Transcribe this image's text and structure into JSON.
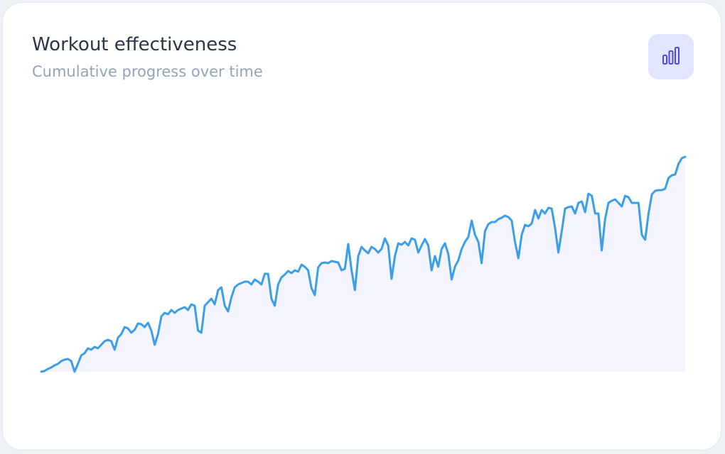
{
  "chart_data": {
    "type": "line",
    "title": "Workout effectiveness",
    "subtitle": "Cumulative progress over time",
    "color": "#3a9fe8",
    "area_color": "#f4f4fe",
    "values": [
      0,
      1,
      4,
      6,
      9,
      11,
      15,
      17,
      18,
      15,
      0,
      11,
      23,
      26,
      33,
      31,
      35,
      33,
      38,
      43,
      45,
      43,
      31,
      48,
      53,
      63,
      61,
      55,
      59,
      68,
      67,
      63,
      69,
      58,
      38,
      53,
      78,
      83,
      81,
      87,
      83,
      87,
      89,
      91,
      87,
      95,
      93,
      58,
      55,
      93,
      98,
      103,
      95,
      115,
      119,
      93,
      85,
      105,
      119,
      123,
      125,
      127,
      127,
      123,
      130,
      127,
      123,
      138,
      138,
      103,
      93,
      123,
      133,
      137,
      142,
      139,
      143,
      141,
      151,
      148,
      143,
      118,
      108,
      147,
      153,
      154,
      153,
      156,
      155,
      154,
      143,
      145,
      180,
      143,
      115,
      163,
      176,
      171,
      167,
      176,
      173,
      168,
      173,
      188,
      178,
      131,
      163,
      181,
      179,
      183,
      178,
      188,
      186,
      168,
      178,
      187,
      178,
      143,
      163,
      148,
      173,
      181,
      166,
      130,
      148,
      157,
      173,
      183,
      190,
      213,
      193,
      183,
      153,
      198,
      208,
      211,
      211,
      215,
      217,
      220,
      218,
      213,
      183,
      160,
      193,
      207,
      205,
      209,
      228,
      216,
      228,
      223,
      231,
      230,
      203,
      168,
      198,
      230,
      232,
      233,
      223,
      238,
      240,
      225,
      251,
      248,
      223,
      223,
      171,
      215,
      238,
      241,
      243,
      238,
      233,
      248,
      246,
      238,
      238,
      238,
      193,
      186,
      223,
      250,
      255,
      256,
      256,
      258,
      273,
      277,
      278,
      293,
      301,
      303
    ]
  }
}
